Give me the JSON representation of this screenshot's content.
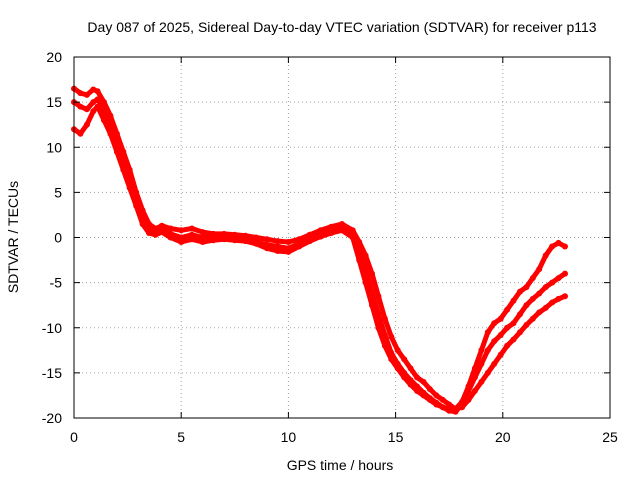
{
  "chart_data": {
    "type": "scatter",
    "title": "Day 087 of 2025, Sidereal Day-to-day VTEC variation (SDTVAR) for receiver p113",
    "xlabel": "GPS time / hours",
    "ylabel": "SDTVAR / TECUs",
    "xlim": [
      0,
      25
    ],
    "ylim": [
      -20,
      20
    ],
    "xticks": [
      0,
      5,
      10,
      15,
      20,
      25
    ],
    "yticks": [
      -20,
      -15,
      -10,
      -5,
      0,
      5,
      10,
      15,
      20
    ],
    "grid": true,
    "color": "#ff0000",
    "series": [
      {
        "x": [
          0.0,
          0.3,
          0.6,
          0.9,
          1.1,
          1.4,
          1.7,
          2.0,
          2.3,
          2.6,
          2.9,
          3.2,
          3.5,
          3.8,
          4.1,
          4.5,
          5.0,
          5.5,
          6.0,
          6.5,
          7.0,
          7.5,
          8.0,
          8.5,
          9.0,
          9.5,
          10.0,
          10.5,
          11.0,
          11.5,
          12.0,
          12.5,
          13.0,
          13.3,
          13.6,
          13.9,
          14.2,
          14.5,
          14.8,
          15.1,
          15.4,
          15.7,
          16.0,
          16.3,
          16.6,
          16.9,
          17.2,
          17.5,
          17.8,
          18.1,
          18.4,
          18.7,
          19.0,
          19.3,
          19.6,
          19.9,
          20.2,
          20.5,
          20.8,
          21.1,
          21.4,
          21.7,
          22.0,
          22.3,
          22.6,
          22.9
        ],
        "y": [
          16.5,
          16.0,
          15.8,
          16.4,
          16.2,
          15.0,
          13.5,
          11.5,
          9.5,
          7.5,
          5.0,
          3.0,
          1.5,
          1.0,
          1.3,
          1.0,
          0.8,
          1.0,
          0.6,
          0.4,
          0.4,
          0.3,
          0.2,
          0.0,
          -0.2,
          -0.4,
          -0.5,
          -0.2,
          0.3,
          0.8,
          1.2,
          1.5,
          0.8,
          -0.5,
          -2.0,
          -4.0,
          -6.5,
          -9.0,
          -11.0,
          -12.5,
          -13.5,
          -14.5,
          -15.5,
          -16.0,
          -16.8,
          -17.5,
          -18.0,
          -18.5,
          -19.0,
          -18.2,
          -16.5,
          -14.5,
          -12.5,
          -10.5,
          -9.5,
          -9.0,
          -8.0,
          -7.0,
          -6.0,
          -5.5,
          -4.5,
          -3.5,
          -2.0,
          -1.0,
          -0.6,
          -1.0
        ]
      },
      {
        "x": [
          0.0,
          0.3,
          0.6,
          0.9,
          1.1,
          1.4,
          1.7,
          2.0,
          2.3,
          2.6,
          2.9,
          3.2,
          3.5,
          3.8,
          4.1,
          4.5,
          5.0,
          5.5,
          6.0,
          6.5,
          7.0,
          7.5,
          8.0,
          8.5,
          9.0,
          9.5,
          10.0,
          10.5,
          11.0,
          11.5,
          12.0,
          12.5,
          13.0,
          13.3,
          13.6,
          13.9,
          14.2,
          14.5,
          14.8,
          15.1,
          15.4,
          15.7,
          16.0,
          16.3,
          16.6,
          16.9,
          17.2,
          17.5,
          17.8,
          18.1,
          18.4,
          18.7,
          19.0,
          19.3,
          19.6,
          19.9,
          20.2,
          20.5,
          20.8,
          21.1,
          21.4,
          21.7,
          22.0,
          22.3,
          22.6,
          22.9
        ],
        "y": [
          15.0,
          14.5,
          14.2,
          15.0,
          15.3,
          14.2,
          12.5,
          10.5,
          8.5,
          6.2,
          4.0,
          2.0,
          0.8,
          0.5,
          0.8,
          0.4,
          0.0,
          0.3,
          0.0,
          0.0,
          0.1,
          0.0,
          -0.2,
          -0.5,
          -0.8,
          -1.0,
          -1.2,
          -0.7,
          -0.2,
          0.3,
          0.7,
          1.0,
          0.3,
          -1.5,
          -3.5,
          -6.0,
          -8.5,
          -10.8,
          -12.8,
          -14.0,
          -15.0,
          -15.8,
          -16.5,
          -17.2,
          -17.8,
          -18.3,
          -18.8,
          -19.2,
          -19.3,
          -18.5,
          -17.0,
          -15.5,
          -14.0,
          -12.5,
          -11.5,
          -10.8,
          -10.0,
          -9.5,
          -8.5,
          -7.5,
          -6.8,
          -6.2,
          -5.5,
          -5.0,
          -4.5,
          -4.0
        ]
      },
      {
        "x": [
          0.0,
          0.3,
          0.6,
          0.9,
          1.1,
          1.4,
          1.7,
          2.0,
          2.3,
          2.6,
          2.9,
          3.2,
          3.5,
          3.8,
          4.1,
          4.5,
          5.0,
          5.5,
          6.0,
          6.5,
          7.0,
          7.5,
          8.0,
          8.5,
          9.0,
          9.5,
          10.0,
          10.5,
          11.0,
          11.5,
          12.0,
          12.5,
          13.0,
          13.3,
          13.6,
          13.9,
          14.2,
          14.5,
          14.8,
          15.1,
          15.4,
          15.7,
          16.0,
          16.3,
          16.6,
          16.9,
          17.2,
          17.5,
          17.8,
          18.1,
          18.4,
          18.7,
          19.0,
          19.3,
          19.6,
          19.9,
          20.2,
          20.5,
          20.8,
          21.1,
          21.4,
          21.7,
          22.0,
          22.3,
          22.6,
          22.9
        ],
        "y": [
          12.0,
          11.5,
          12.5,
          14.0,
          14.5,
          13.0,
          11.5,
          9.5,
          7.5,
          5.5,
          3.5,
          1.5,
          0.5,
          0.3,
          0.6,
          0.0,
          -0.5,
          -0.2,
          -0.5,
          -0.3,
          -0.2,
          -0.3,
          -0.4,
          -0.7,
          -1.2,
          -1.5,
          -1.6,
          -1.0,
          -0.4,
          0.1,
          0.5,
          0.8,
          0.0,
          -2.5,
          -5.0,
          -7.5,
          -10.0,
          -12.0,
          -13.5,
          -14.5,
          -15.5,
          -16.3,
          -17.0,
          -17.5,
          -18.0,
          -18.5,
          -18.8,
          -19.0,
          -19.0,
          -18.8,
          -18.0,
          -17.0,
          -16.0,
          -15.0,
          -14.0,
          -13.0,
          -12.0,
          -11.3,
          -10.5,
          -9.7,
          -9.0,
          -8.3,
          -7.8,
          -7.2,
          -6.8,
          -6.5
        ]
      }
    ]
  }
}
